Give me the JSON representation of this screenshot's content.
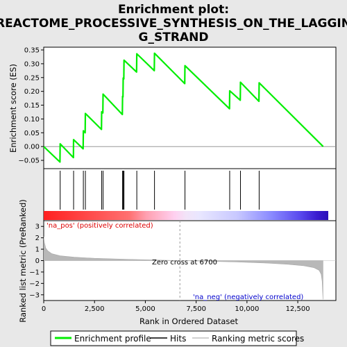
{
  "chart_data": {
    "type": "line",
    "title_lines": [
      "Enrichment plot:",
      "REACTOME_PROCESSIVE_SYNTHESIS_ON_THE_LAGGIN",
      "G_STRAND"
    ],
    "xlabel": "Rank in Ordered Dataset",
    "ylabel_top": "Enrichment score (ES)",
    "ylabel_bottom": "Ranked list metric (PreRanked)",
    "x_range": [
      0,
      14000
    ],
    "es_ylim": [
      -0.08,
      0.36
    ],
    "metric_ylim": [
      -3.5,
      3.5
    ],
    "x_ticks": [
      0,
      2500,
      5000,
      7500,
      10000,
      12500
    ],
    "x_tick_labels": [
      "0",
      "2,500",
      "5,000",
      "7,500",
      "10,000",
      "12,500"
    ],
    "es_ticks": [
      -0.05,
      0.0,
      0.05,
      0.1,
      0.15,
      0.2,
      0.25,
      0.3,
      0.35
    ],
    "es_tick_labels": [
      "−0.05",
      "0.00",
      "0.05",
      "0.10",
      "0.15",
      "0.20",
      "0.25",
      "0.30",
      "0.35"
    ],
    "metric_ticks": [
      -3,
      -2,
      -1,
      0,
      1,
      2,
      3
    ],
    "metric_tick_labels": [
      "−3",
      "−2",
      "−1",
      "0",
      "1",
      "2",
      "3"
    ],
    "hits": [
      810,
      1470,
      1950,
      2050,
      2850,
      2920,
      3880,
      3910,
      3950,
      4580,
      5450,
      6950,
      9150,
      9680,
      10600
    ],
    "es_profile": {
      "x": [
        0,
        800,
        810,
        1460,
        1470,
        1940,
        1950,
        2040,
        2050,
        2840,
        2850,
        2910,
        2920,
        3870,
        3880,
        3900,
        3910,
        3940,
        3950,
        4570,
        4580,
        5440,
        5450,
        6940,
        6950,
        9140,
        9150,
        9670,
        9680,
        10590,
        10600,
        13750
      ],
      "y": [
        0.0,
        -0.056,
        0.01,
        -0.04,
        0.025,
        -0.008,
        0.057,
        0.05,
        0.12,
        0.062,
        0.126,
        0.122,
        0.19,
        0.116,
        0.182,
        0.18,
        0.248,
        0.245,
        0.313,
        0.27,
        0.336,
        0.275,
        0.338,
        0.228,
        0.293,
        0.137,
        0.202,
        0.168,
        0.233,
        0.164,
        0.231,
        0.0
      ]
    },
    "metric_curve": {
      "x": [
        0,
        30,
        100,
        200,
        400,
        800,
        1500,
        2500,
        4000,
        5500,
        6700,
        8000,
        9500,
        11000,
        12000,
        12800,
        13300,
        13550,
        13650,
        13700,
        13720,
        13740
      ],
      "y": [
        2.1,
        1.6,
        1.1,
        0.85,
        0.6,
        0.42,
        0.3,
        0.2,
        0.12,
        0.05,
        0.0,
        -0.05,
        -0.12,
        -0.22,
        -0.32,
        -0.45,
        -0.62,
        -0.85,
        -1.2,
        -1.8,
        -2.6,
        -3.4
      ]
    },
    "zero_cross": 6700,
    "zero_cross_label": "Zero cross at 6700",
    "pos_label": "'na_pos' (positively correlated)",
    "neg_label": "'na_neg' (negatively correlated)",
    "legend": [
      {
        "name": "Enrichment profile",
        "color": "#00ee00"
      },
      {
        "name": "Hits",
        "color": "#000000"
      },
      {
        "name": "Ranking metric scores",
        "color": "#c0c0c0"
      }
    ],
    "colors": {
      "es_line": "#00ee00",
      "hit": "#000000",
      "metric_fill": "#b8b8b8",
      "pos_text": "#dd0000",
      "neg_text": "#0000cc",
      "zero_dash": "#999999"
    },
    "heatmap_gradient": [
      {
        "pos": 0.0,
        "color": "#ff2020"
      },
      {
        "pos": 0.3,
        "color": "#ff7070"
      },
      {
        "pos": 0.36,
        "color": "#ffa0b0"
      },
      {
        "pos": 0.46,
        "color": "#ffd0f0"
      },
      {
        "pos": 0.5,
        "color": "#f2e4f8"
      },
      {
        "pos": 0.55,
        "color": "#e8e6ff"
      },
      {
        "pos": 0.68,
        "color": "#c8c8ff"
      },
      {
        "pos": 0.8,
        "color": "#8a8aff"
      },
      {
        "pos": 0.9,
        "color": "#5a4aee"
      },
      {
        "pos": 0.96,
        "color": "#3a1cd0"
      },
      {
        "pos": 1.0,
        "color": "#2a10b8"
      }
    ]
  }
}
